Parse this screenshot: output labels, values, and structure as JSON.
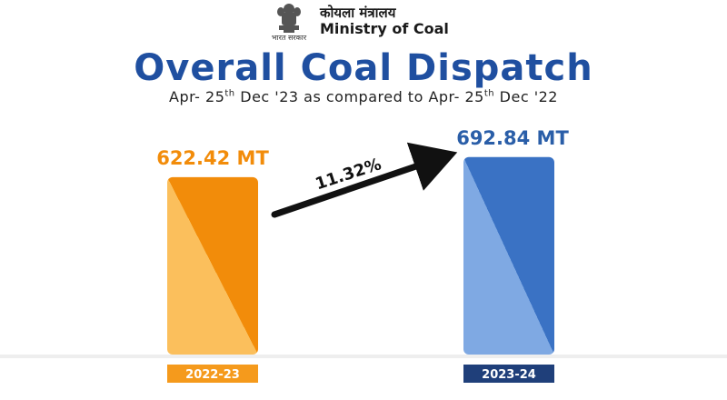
{
  "header": {
    "emblem_caption": "भारत सरकार",
    "ministry_hindi": "कोयला मंत्रालय",
    "ministry_english": "Ministry of Coal"
  },
  "title": "Overall Coal Dispatch",
  "subtitle": {
    "part1": "Apr- 25",
    "sup1": "th",
    "part2": " Dec '23 as compared to Apr- 25",
    "sup2": "th",
    "part3": " Dec '22"
  },
  "colors": {
    "title": "#1f4fa0",
    "bar_2022_top": "#f28c0a",
    "bar_2022_bottom": "#fbbf5c",
    "bar_2023_top": "#3a72c4",
    "bar_2023_bottom": "#7fa9e3",
    "label_2022": "#f28c0a",
    "label_2023": "#2a5ea8",
    "cat_2022_bg": "#f59a1c",
    "cat_2023_bg": "#1f3f7a"
  },
  "chart_data": {
    "type": "bar",
    "categories": [
      "2022-23",
      "2023-24"
    ],
    "values": [
      622.42,
      692.84
    ],
    "value_labels": [
      "622.42 MT",
      "692.84 MT"
    ],
    "growth_label": "11.32%",
    "ylim": [
      0,
      700
    ]
  }
}
